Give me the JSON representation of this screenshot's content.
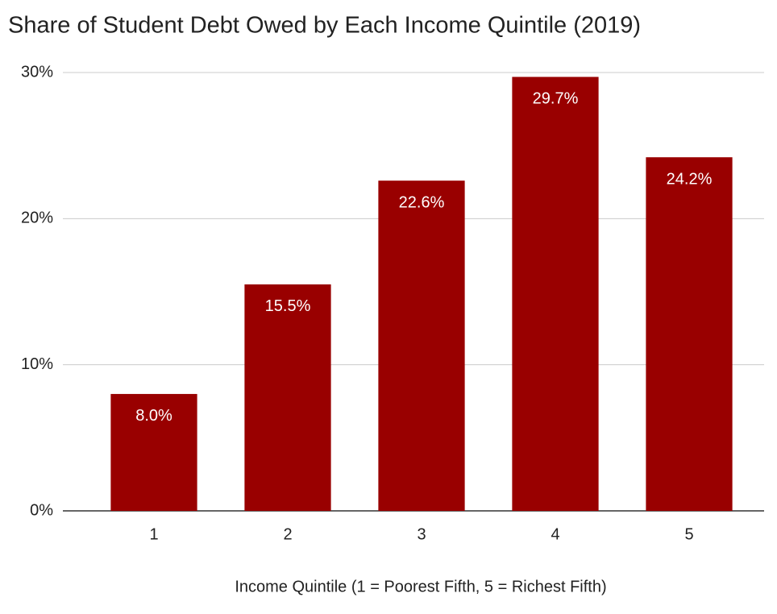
{
  "chart_data": {
    "type": "bar",
    "title": "Share of Student Debt Owed by Each Income Quintile (2019)",
    "x_label": "Income Quintile (1 = Poorest Fifth, 5 = Richest Fifth)",
    "categories": [
      "1",
      "2",
      "3",
      "4",
      "5"
    ],
    "values": [
      8.0,
      15.5,
      22.6,
      29.7,
      24.2
    ],
    "value_labels": [
      "8.0%",
      "15.5%",
      "22.6%",
      "29.7%",
      "24.2%"
    ],
    "color": "#990000",
    "ylim": [
      0,
      30
    ],
    "yticks": [
      {
        "value": 0,
        "label": "0%"
      },
      {
        "value": 10,
        "label": "10%"
      },
      {
        "value": 20,
        "label": "20%"
      },
      {
        "value": 30,
        "label": "30%"
      }
    ],
    "grid": true
  }
}
